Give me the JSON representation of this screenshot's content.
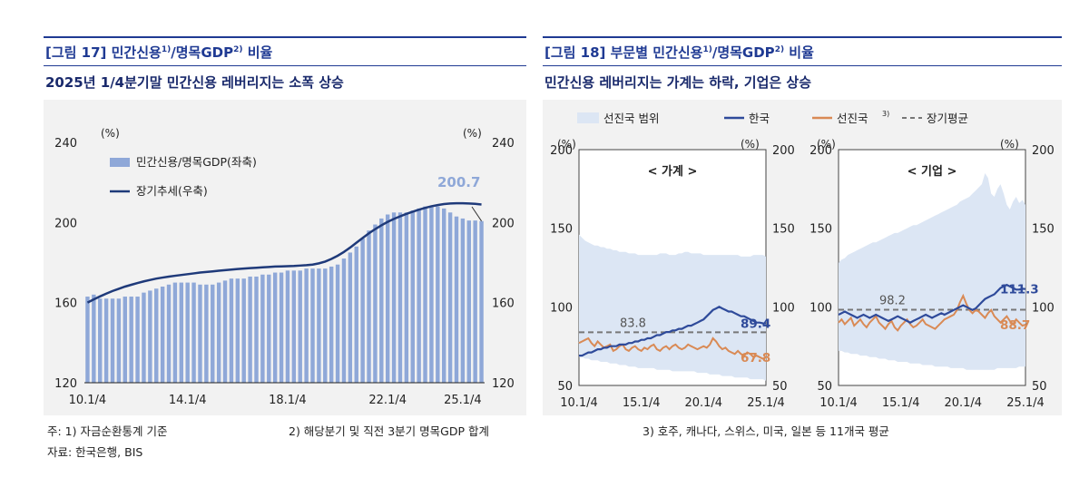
{
  "fig17": {
    "title_main": "[그림 17] 민간신용",
    "title_sup1": "1)",
    "title_mid": "/명목GDP",
    "title_sup2": "2)",
    "title_end": " 비율",
    "subtitle": "2025년 1/4분기말 민간신용 레버리지는 소폭 상승"
  },
  "fig18": {
    "title_main": "[그림 18] 부문별 민간신용",
    "title_sup1": "1)",
    "title_mid": "/명목GDP",
    "title_sup2": "2)",
    "title_end": " 비율",
    "subtitle": "민간신용 레버리지는 가계는 하락, 기업은 상승"
  },
  "chart_data": [
    {
      "type": "bar",
      "id": "fig17-chart",
      "unit_left": "(%)",
      "unit_right": "(%)",
      "y_ticks": [
        "240",
        "200",
        "160",
        "120"
      ],
      "ylim": [
        120,
        240
      ],
      "x_ticks": [
        "10.1/4",
        "14.1/4",
        "18.1/4",
        "22.1/4",
        "25.1/4"
      ],
      "legend": [
        "민간신용/명목GDP(좌축)",
        "장기추세(우축)"
      ],
      "annotation": "200.7",
      "colors": {
        "bar": "#8fa8d8",
        "trend": "#1f3a7a",
        "annotation": "#8fa8d8"
      },
      "bar_values": [
        163,
        164,
        162,
        162,
        162,
        162,
        163,
        163,
        163,
        165,
        166,
        167,
        168,
        169,
        170,
        170,
        170,
        170,
        169,
        169,
        169,
        170,
        171,
        172,
        172,
        172,
        173,
        173,
        174,
        174,
        175,
        175,
        176,
        176,
        176,
        177,
        177,
        177,
        177,
        178,
        179,
        182,
        185,
        188,
        192,
        196,
        199,
        202,
        204,
        205,
        205,
        205,
        206,
        207,
        208,
        208,
        208,
        207,
        205,
        203,
        202,
        201,
        201,
        200.7
      ],
      "trend_values": [
        160,
        161.6,
        163.1,
        164.5,
        165.8,
        166.9,
        168,
        168.9,
        169.8,
        170.6,
        171.3,
        172,
        172.5,
        173,
        173.4,
        173.8,
        174.2,
        174.6,
        175,
        175.3,
        175.6,
        175.9,
        176.2,
        176.5,
        176.8,
        177,
        177.2,
        177.4,
        177.6,
        177.8,
        178,
        178.1,
        178.2,
        178.3,
        178.5,
        178.7,
        179,
        179.6,
        180.5,
        181.8,
        183.4,
        185.3,
        187.5,
        189.9,
        192.3,
        194.6,
        196.7,
        198.6,
        200.3,
        201.8,
        203.1,
        204.3,
        205.4,
        206.4,
        207.3,
        208.1,
        208.7,
        209.2,
        209.5,
        209.6,
        209.6,
        209.5,
        209.3,
        209
      ]
    },
    {
      "type": "line",
      "id": "fig18-household",
      "panel_title": "< 가계 >",
      "unit_left": "(%)",
      "unit_right": "(%)",
      "y_ticks_left": [
        "200",
        "150",
        "100",
        "50"
      ],
      "y_ticks_right": [
        "200",
        "150",
        "100",
        "50"
      ],
      "ylim": [
        50,
        200
      ],
      "x_ticks": [
        "10.1/4",
        "15.1/4",
        "20.1/4",
        "25.1/4"
      ],
      "long_term_avg": 83.8,
      "long_term_label": "83.8",
      "end_label_korea": "89.4",
      "end_label_adv": "67.8",
      "range_upper": [
        146,
        144,
        142,
        141,
        140,
        139,
        139,
        138,
        138,
        137,
        137,
        136,
        136,
        135,
        135,
        135,
        134,
        134,
        134,
        133,
        133,
        133,
        133,
        133,
        133,
        133,
        134,
        134,
        134,
        133,
        133,
        133,
        134,
        134,
        135,
        135,
        134,
        134,
        134,
        134,
        133,
        133,
        133,
        133,
        133,
        133,
        133,
        133,
        133,
        133,
        133,
        133,
        132,
        132,
        132,
        132,
        133,
        133,
        133,
        133,
        132
      ],
      "range_lower": [
        68,
        68,
        67,
        67,
        66,
        66,
        66,
        65,
        65,
        65,
        64,
        64,
        64,
        63,
        63,
        63,
        62,
        62,
        62,
        61,
        61,
        61,
        61,
        61,
        61,
        60,
        60,
        60,
        60,
        60,
        59,
        59,
        59,
        59,
        59,
        59,
        59,
        59,
        58,
        58,
        58,
        58,
        57,
        57,
        57,
        57,
        56,
        56,
        56,
        56,
        55,
        55,
        55,
        55,
        55,
        54,
        54,
        54,
        54,
        54,
        53
      ],
      "korea": [
        69,
        69,
        70,
        71,
        71,
        72,
        73,
        73,
        74,
        74,
        75,
        75,
        75,
        76,
        76,
        76,
        77,
        77,
        78,
        78,
        79,
        79,
        80,
        80,
        81,
        82,
        82,
        83,
        84,
        84,
        85,
        85,
        86,
        86,
        87,
        88,
        88,
        89,
        90,
        91,
        92,
        94,
        96,
        98,
        99,
        100,
        99,
        98,
        97,
        97,
        96,
        95,
        94,
        94,
        93,
        92,
        91,
        90,
        90,
        89.5,
        89.4
      ],
      "advanced": [
        77,
        78,
        79,
        80,
        77,
        75,
        78,
        76,
        74,
        75,
        76,
        72,
        73,
        75,
        76,
        73,
        72,
        74,
        75,
        73,
        72,
        74,
        73,
        75,
        76,
        73,
        72,
        74,
        75,
        73,
        75,
        76,
        74,
        73,
        74,
        76,
        75,
        74,
        73,
        74,
        75,
        74,
        76,
        80,
        78,
        75,
        73,
        74,
        72,
        71,
        70,
        72,
        70,
        69,
        71,
        70,
        68,
        69,
        68,
        67,
        67.8
      ],
      "colors": {
        "range": "#dce6f4",
        "korea": "#2e4a9a",
        "advanced": "#d98a55",
        "avg": "#777777"
      }
    },
    {
      "type": "line",
      "id": "fig18-corporate",
      "panel_title": "< 기업 >",
      "unit_left": "(%)",
      "unit_right": "(%)",
      "y_ticks_left": [
        "200",
        "150",
        "100",
        "50"
      ],
      "y_ticks_right": [
        "200",
        "150",
        "100",
        "50"
      ],
      "ylim": [
        50,
        200
      ],
      "x_ticks": [
        "10.1/4",
        "15.1/4",
        "20.1/4",
        "25.1/4"
      ],
      "long_term_avg": 98.2,
      "long_term_label": "98.2",
      "end_label_korea": "111.3",
      "end_label_adv": "88.7",
      "range_upper": [
        128,
        130,
        131,
        133,
        134,
        135,
        136,
        137,
        138,
        139,
        140,
        141,
        141,
        142,
        143,
        144,
        145,
        146,
        147,
        147,
        148,
        149,
        150,
        151,
        152,
        152,
        153,
        154,
        155,
        156,
        157,
        158,
        159,
        160,
        161,
        162,
        163,
        164,
        165,
        167,
        168,
        169,
        170,
        172,
        174,
        176,
        178,
        185,
        182,
        172,
        170,
        175,
        178,
        172,
        165,
        162,
        167,
        170,
        166,
        168,
        165
      ],
      "range_lower": [
        72,
        72,
        71,
        71,
        70,
        70,
        70,
        69,
        69,
        69,
        68,
        68,
        68,
        67,
        67,
        67,
        66,
        66,
        66,
        65,
        65,
        65,
        65,
        64,
        64,
        64,
        64,
        63,
        63,
        63,
        63,
        62,
        62,
        62,
        62,
        62,
        61,
        61,
        61,
        61,
        61,
        60,
        60,
        60,
        60,
        60,
        60,
        60,
        60,
        60,
        60,
        61,
        61,
        61,
        61,
        61,
        61,
        61,
        62,
        62,
        62
      ],
      "korea": [
        95,
        96,
        97,
        96,
        95,
        94,
        93,
        94,
        95,
        94,
        93,
        94,
        95,
        94,
        93,
        92,
        91,
        92,
        93,
        94,
        93,
        92,
        91,
        90,
        91,
        92,
        93,
        94,
        95,
        94,
        93,
        94,
        95,
        96,
        95,
        96,
        97,
        98,
        99,
        100,
        101,
        100,
        99,
        98,
        99,
        101,
        103,
        105,
        106,
        107,
        108,
        110,
        112,
        113,
        114,
        113,
        112,
        111,
        111,
        111.5,
        111.3
      ],
      "advanced": [
        90,
        92,
        89,
        91,
        93,
        88,
        90,
        92,
        89,
        87,
        90,
        92,
        94,
        90,
        88,
        86,
        89,
        91,
        87,
        85,
        88,
        90,
        92,
        89,
        87,
        88,
        90,
        92,
        89,
        88,
        87,
        86,
        88,
        90,
        92,
        93,
        94,
        95,
        98,
        103,
        107,
        102,
        98,
        96,
        98,
        97,
        95,
        93,
        96,
        98,
        94,
        92,
        90,
        92,
        94,
        91,
        89,
        92,
        90,
        88,
        88.7
      ],
      "colors": {
        "range": "#dce6f4",
        "korea": "#2e4a9a",
        "advanced": "#d98a55",
        "avg": "#777777"
      }
    }
  ],
  "fig18_legend": {
    "range": "선진국 범위",
    "korea": "한국",
    "advanced": "선진국",
    "advanced_sup": "3)",
    "avg": "장기평균"
  },
  "footnotes": {
    "note1": "주:  1) 자금순환통계 기준",
    "note2": "2) 해당분기 및 직전 3분기 명목GDP 합계",
    "note3": "3) 호주, 캐나다, 스위스, 미국, 일본 등 11개국 평균",
    "source": "자료: 한국은행, BIS"
  }
}
